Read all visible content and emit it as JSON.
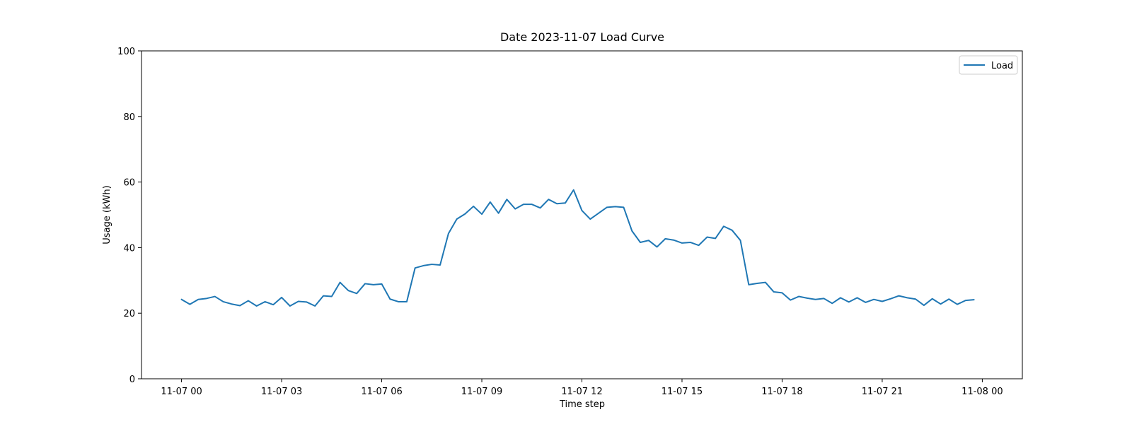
{
  "chart_data": {
    "type": "line",
    "title": "Date 2023-11-07 Load Curve",
    "xlabel": "Time step",
    "ylabel": "Usage (kWh)",
    "ylim": [
      0,
      100
    ],
    "xlim": [
      "2023-11-06 22:48",
      "2023-11-08 01:12"
    ],
    "yticks": [
      0,
      20,
      40,
      60,
      80,
      100
    ],
    "xticks": [
      {
        "at": "2023-11-07 00:00",
        "label": "11-07 00"
      },
      {
        "at": "2023-11-07 03:00",
        "label": "11-07 03"
      },
      {
        "at": "2023-11-07 06:00",
        "label": "11-07 06"
      },
      {
        "at": "2023-11-07 09:00",
        "label": "11-07 09"
      },
      {
        "at": "2023-11-07 12:00",
        "label": "11-07 12"
      },
      {
        "at": "2023-11-07 15:00",
        "label": "11-07 15"
      },
      {
        "at": "2023-11-07 18:00",
        "label": "11-07 18"
      },
      {
        "at": "2023-11-07 21:00",
        "label": "11-07 21"
      },
      {
        "at": "2023-11-08 00:00",
        "label": "11-08 00"
      }
    ],
    "grid": false,
    "legend_position": "top-right",
    "series": [
      {
        "name": "Load",
        "color": "#1f77b4",
        "x": [
          "2023-11-07 00:00",
          "2023-11-07 00:15",
          "2023-11-07 00:30",
          "2023-11-07 00:45",
          "2023-11-07 01:00",
          "2023-11-07 01:15",
          "2023-11-07 01:30",
          "2023-11-07 01:45",
          "2023-11-07 02:00",
          "2023-11-07 02:15",
          "2023-11-07 02:30",
          "2023-11-07 02:45",
          "2023-11-07 03:00",
          "2023-11-07 03:15",
          "2023-11-07 03:30",
          "2023-11-07 03:45",
          "2023-11-07 04:00",
          "2023-11-07 04:15",
          "2023-11-07 04:30",
          "2023-11-07 04:45",
          "2023-11-07 05:00",
          "2023-11-07 05:15",
          "2023-11-07 05:30",
          "2023-11-07 05:45",
          "2023-11-07 06:00",
          "2023-11-07 06:15",
          "2023-11-07 06:30",
          "2023-11-07 06:45",
          "2023-11-07 07:00",
          "2023-11-07 07:15",
          "2023-11-07 07:30",
          "2023-11-07 07:45",
          "2023-11-07 08:00",
          "2023-11-07 08:15",
          "2023-11-07 08:30",
          "2023-11-07 08:45",
          "2023-11-07 09:00",
          "2023-11-07 09:15",
          "2023-11-07 09:30",
          "2023-11-07 09:45",
          "2023-11-07 10:00",
          "2023-11-07 10:15",
          "2023-11-07 10:30",
          "2023-11-07 10:45",
          "2023-11-07 11:00",
          "2023-11-07 11:15",
          "2023-11-07 11:30",
          "2023-11-07 11:45",
          "2023-11-07 12:00",
          "2023-11-07 12:15",
          "2023-11-07 12:30",
          "2023-11-07 12:45",
          "2023-11-07 13:00",
          "2023-11-07 13:15",
          "2023-11-07 13:30",
          "2023-11-07 13:45",
          "2023-11-07 14:00",
          "2023-11-07 14:15",
          "2023-11-07 14:30",
          "2023-11-07 14:45",
          "2023-11-07 15:00",
          "2023-11-07 15:15",
          "2023-11-07 15:30",
          "2023-11-07 15:45",
          "2023-11-07 16:00",
          "2023-11-07 16:15",
          "2023-11-07 16:30",
          "2023-11-07 16:45",
          "2023-11-07 17:00",
          "2023-11-07 17:15",
          "2023-11-07 17:30",
          "2023-11-07 17:45",
          "2023-11-07 18:00",
          "2023-11-07 18:15",
          "2023-11-07 18:30",
          "2023-11-07 18:45",
          "2023-11-07 19:00",
          "2023-11-07 19:15",
          "2023-11-07 19:30",
          "2023-11-07 19:45",
          "2023-11-07 20:00",
          "2023-11-07 20:15",
          "2023-11-07 20:30",
          "2023-11-07 20:45",
          "2023-11-07 21:00",
          "2023-11-07 21:15",
          "2023-11-07 21:30",
          "2023-11-07 21:45",
          "2023-11-07 22:00",
          "2023-11-07 22:15",
          "2023-11-07 22:30",
          "2023-11-07 22:45",
          "2023-11-07 23:00",
          "2023-11-07 23:15",
          "2023-11-07 23:30",
          "2023-11-07 23:45"
        ],
        "values": [
          24.2,
          22.7,
          24.2,
          24.5,
          25.1,
          23.5,
          22.8,
          22.3,
          23.8,
          22.2,
          23.5,
          22.6,
          24.8,
          22.2,
          23.6,
          23.4,
          22.2,
          25.3,
          25.1,
          29.4,
          26.9,
          26.0,
          29.0,
          28.7,
          28.9,
          24.3,
          23.5,
          23.5,
          33.8,
          34.5,
          34.9,
          34.7,
          44.3,
          48.7,
          50.3,
          52.6,
          50.2,
          53.9,
          50.5,
          54.7,
          51.8,
          53.2,
          53.2,
          52.1,
          54.7,
          53.4,
          53.6,
          57.6,
          51.3,
          48.7,
          50.5,
          52.3,
          52.5,
          52.3,
          45.1,
          41.6,
          42.2,
          40.2,
          42.7,
          42.3,
          41.4,
          41.6,
          40.7,
          43.2,
          42.8,
          46.5,
          45.3,
          42.2,
          28.7,
          29.1,
          29.4,
          26.5,
          26.2,
          24.0,
          25.1,
          24.6,
          24.2,
          24.5,
          23.0,
          24.7,
          23.4,
          24.7,
          23.3,
          24.2,
          23.6,
          24.4,
          25.3,
          24.7,
          24.3,
          22.4,
          24.4,
          22.8,
          24.3,
          22.7,
          23.9,
          24.1
        ]
      }
    ]
  }
}
